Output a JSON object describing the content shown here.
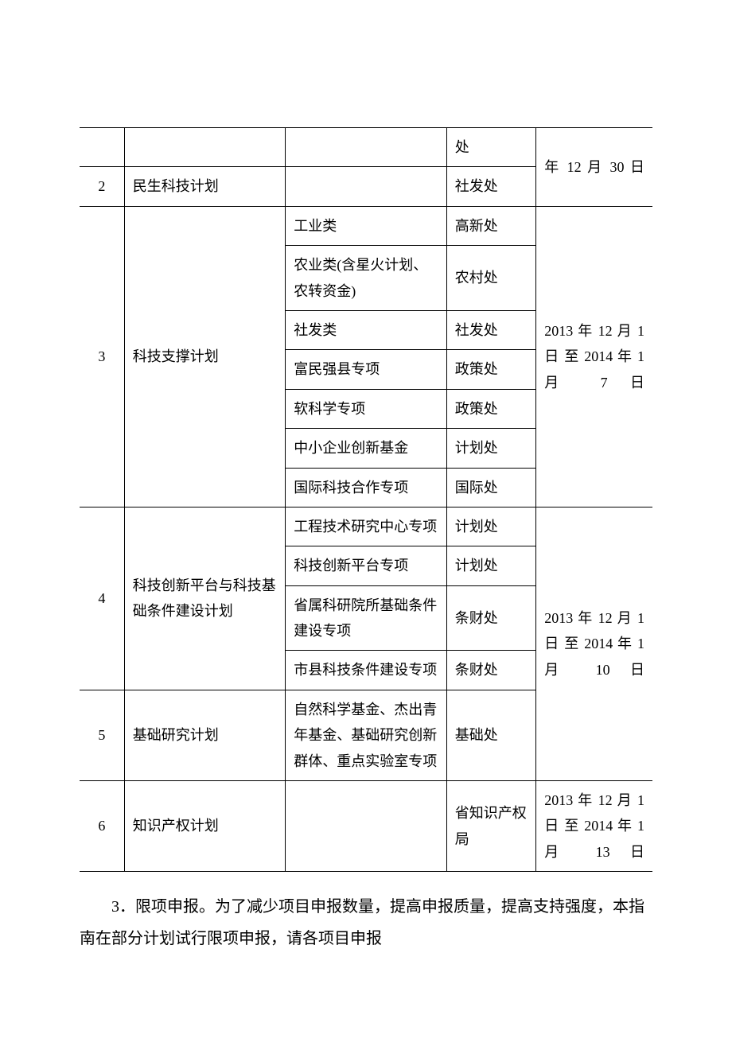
{
  "table": {
    "rows": [
      {
        "num": "",
        "plan": "",
        "category": "",
        "dept": "处",
        "date": "年 12 月 30 日"
      },
      {
        "num": "2",
        "plan": "民生科技计划",
        "category": "",
        "dept": "社发处",
        "date": ""
      },
      {
        "num": "3",
        "plan": "科技支撑计划",
        "categories": [
          {
            "cat": "工业类",
            "dept": "高新处"
          },
          {
            "cat": "农业类(含星火计划、农转资金)",
            "dept": "农村处"
          },
          {
            "cat": "社发类",
            "dept": "社发处"
          },
          {
            "cat": "富民强县专项",
            "dept": "政策处"
          },
          {
            "cat": "软科学专项",
            "dept": "政策处"
          },
          {
            "cat": "中小企业创新基金",
            "dept": "计划处"
          },
          {
            "cat": "国际科技合作专项",
            "dept": "国际处"
          }
        ],
        "date": "2013 年 12 月 1 日 至 2014 年 1 月 7 日"
      },
      {
        "num": "4",
        "plan": "科技创新平台与科技基础条件建设计划",
        "categories": [
          {
            "cat": "工程技术研究中心专项",
            "dept": "计划处"
          },
          {
            "cat": "科技创新平台专项",
            "dept": "计划处"
          },
          {
            "cat": "省属科研院所基础条件建设专项",
            "dept": "条财处"
          },
          {
            "cat": "市县科技条件建设专项",
            "dept": "条财处"
          }
        ],
        "date": "2013 年 12 月 1 日 至 2014 年 1 月 10 日"
      },
      {
        "num": "5",
        "plan": "基础研究计划",
        "category": "自然科学基金、杰出青年基金、基础研究创新群体、重点实验室专项",
        "dept": "基础处",
        "date": ""
      },
      {
        "num": "6",
        "plan": "知识产权计划",
        "category": "",
        "dept": "省知识产权局",
        "date": "2013 年 12 月 1 日 至 2014 年 1 月 13 日"
      }
    ]
  },
  "paragraph": "3．限项申报。为了减少项目申报数量，提高申报质量，提高支持强度，本指南在部分计划试行限项申报，请各项目申报"
}
